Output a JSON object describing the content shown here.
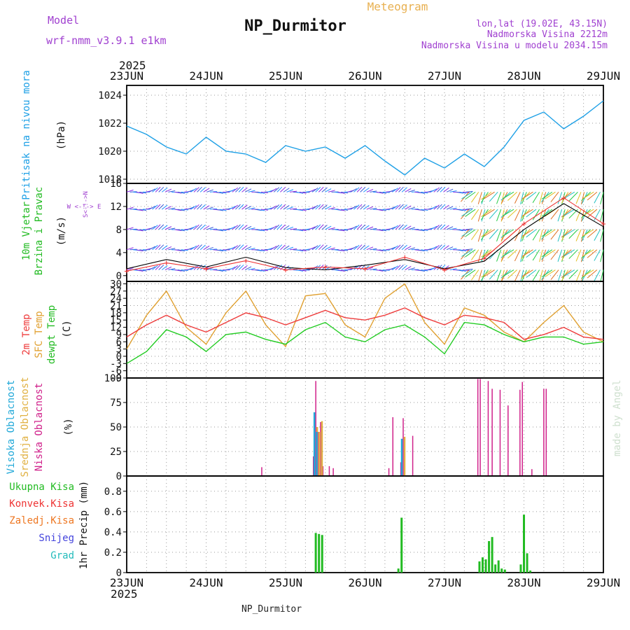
{
  "header": {
    "model_label": "Model",
    "model_name": "wrf-nmm_v3.9.1 e1km",
    "title": "NP_Durmitor",
    "meteogram": "Meteogram",
    "lonlat": "lon,lat (19.02E, 43.15N)",
    "altitude": "Nadmorska Visina 2212m",
    "model_altitude": "Nadmorska Visina u modelu 2034.15m",
    "watermark": "made by Angel",
    "footer": "NP_Durmitor"
  },
  "time_axis": {
    "year": "2025",
    "labels": [
      "23JUN",
      "24JUN",
      "25JUN",
      "26JUN",
      "27JUN",
      "28JUN",
      "29JUN"
    ]
  },
  "colors": {
    "pressure": "#1ea0e6",
    "temp2m": "#ee3b3b",
    "sfc": "#e0a030",
    "dewpt": "#22cc22",
    "cloud_high": "#20a8d8",
    "cloud_mid": "#e0b040",
    "cloud_low": "#d0208a",
    "precip_total": "#22bb22",
    "precip_conv": "#ee3333",
    "wind_speed": "#000000",
    "wind_gust": "#ee3333"
  },
  "chart_data": [
    {
      "type": "line",
      "id": "pressure",
      "ylabel_left": "Pritisak na nivou mora",
      "ylabel_unit": "(hPa)",
      "y_ticks": [
        "1018",
        "1020",
        "1022",
        "1024"
      ],
      "ylim": [
        1017.7,
        1024.7
      ],
      "x_unit": "days from 23JUN 00UTC",
      "xlim": [
        0,
        6
      ],
      "x": [
        0,
        0.25,
        0.5,
        0.75,
        1,
        1.25,
        1.5,
        1.75,
        2,
        2.25,
        2.5,
        2.75,
        3,
        3.25,
        3.5,
        3.75,
        4,
        4.25,
        4.5,
        4.75,
        5,
        5.25,
        5.5,
        5.75,
        6
      ],
      "values": [
        1021.8,
        1021.2,
        1020.3,
        1019.8,
        1021.0,
        1020.0,
        1019.8,
        1019.2,
        1020.4,
        1020.0,
        1020.3,
        1019.5,
        1020.4,
        1019.3,
        1018.3,
        1019.5,
        1018.8,
        1019.8,
        1018.9,
        1020.3,
        1022.2,
        1022.8,
        1021.6,
        1022.5,
        1023.6
      ]
    },
    {
      "type": "line",
      "id": "wind",
      "ylabel_left_1": "10m Vjetar",
      "ylabel_left_2": "Brzina i Pravac",
      "ylabel_unit": "(m/s)",
      "compass": "W <-!-> E",
      "compass_v": "S<-!->N",
      "y_ticks": [
        "0",
        "4",
        "8",
        "12",
        "16"
      ],
      "ylim": [
        -1,
        16
      ],
      "xlim": [
        0,
        6
      ],
      "x": [
        0,
        0.5,
        1,
        1.5,
        2,
        2.5,
        3,
        3.5,
        4,
        4.5,
        5,
        5.5,
        6
      ],
      "series": [
        {
          "values": [
            1.2,
            2.8,
            1.5,
            3.2,
            1.4,
            1.0,
            1.8,
            2.8,
            1.2,
            2.5,
            8.0,
            12.5,
            8.5
          ]
        },
        {
          "values": [
            0.8,
            2.2,
            1.2,
            2.6,
            1.0,
            1.5,
            1.2,
            3.2,
            1.0,
            3.0,
            9.0,
            13.5,
            9.0
          ]
        }
      ],
      "barb_rows": [
        1,
        4.5,
        8,
        11.5,
        14.5
      ]
    },
    {
      "type": "line",
      "id": "temperature",
      "ylabel_left_1": "2m Temp",
      "ylabel_left_2": "SFC Temp",
      "ylabel_left_3": "dewpt Temp",
      "ylabel_unit": "(C)",
      "y_ticks": [
        "-9",
        "-6",
        "-3",
        "0",
        "3",
        "6",
        "9",
        "12",
        "15",
        "18",
        "21",
        "24",
        "27",
        "30"
      ],
      "ylim": [
        -9,
        31
      ],
      "xlim": [
        0,
        6
      ],
      "x": [
        0,
        0.25,
        0.5,
        0.75,
        1,
        1.25,
        1.5,
        1.75,
        2,
        2.25,
        2.5,
        2.75,
        3,
        3.25,
        3.5,
        3.75,
        4,
        4.25,
        4.5,
        4.75,
        5,
        5.25,
        5.5,
        5.75,
        6
      ],
      "series": [
        {
          "name": "2m Temp",
          "values": [
            8,
            13,
            17,
            13,
            10,
            14,
            18,
            16,
            13,
            16,
            19,
            16,
            15,
            17,
            20,
            16,
            13,
            17,
            16,
            14,
            7,
            9,
            12,
            8,
            7
          ]
        },
        {
          "name": "SFC Temp",
          "values": [
            3,
            17,
            27,
            12,
            5,
            18,
            27,
            13,
            4,
            25,
            26,
            13,
            8,
            24,
            30,
            14,
            5,
            20,
            17,
            10,
            6,
            14,
            21,
            10,
            6
          ]
        },
        {
          "name": "dewpt Temp",
          "values": [
            -3,
            2,
            11,
            8,
            2,
            9,
            10,
            7,
            5,
            11,
            14,
            8,
            6,
            11,
            13,
            8,
            1,
            14,
            13,
            9,
            6,
            8,
            8,
            5,
            6
          ]
        }
      ]
    },
    {
      "type": "bar",
      "id": "clouds",
      "ylabel_left_1": "Visoka Oblacnost",
      "ylabel_left_2": "Srednja Oblacnost",
      "ylabel_left_3": "Niska Oblacnost",
      "ylabel_unit": "(%)",
      "y_ticks": [
        "0",
        "25",
        "50",
        "75",
        "100"
      ],
      "ylim": [
        0,
        100
      ],
      "xlim": [
        0,
        6
      ],
      "x": [
        1.7,
        2.35,
        2.38,
        2.41,
        2.44,
        2.47,
        2.55,
        2.6,
        3.3,
        3.35,
        3.45,
        3.48,
        3.6,
        4.42,
        4.45,
        4.55,
        4.6,
        4.7,
        4.8,
        4.95,
        4.98,
        5.1,
        5.25,
        5.28
      ],
      "series": [
        {
          "name": "Niska Oblacnost",
          "values": [
            9,
            20,
            97,
            45,
            55,
            10,
            10,
            8,
            8,
            60,
            14,
            59,
            41,
            99,
            99,
            97,
            89,
            88,
            72,
            88,
            96,
            7,
            89,
            89
          ]
        },
        {
          "name": "Srednja Oblacnost",
          "values": [
            0,
            0,
            50,
            45,
            56,
            0,
            0,
            0,
            0,
            0,
            0,
            40,
            0,
            0,
            0,
            0,
            0,
            0,
            0,
            0,
            0,
            0,
            0,
            0
          ]
        },
        {
          "name": "Visoka Oblacnost",
          "values": [
            0,
            0,
            65,
            45,
            0,
            0,
            0,
            0,
            0,
            0,
            0,
            38,
            0,
            0,
            0,
            0,
            0,
            0,
            0,
            0,
            0,
            0,
            0,
            0
          ]
        }
      ]
    },
    {
      "type": "bar",
      "id": "precip",
      "legend": [
        "Ukupna Kisa",
        "Konvek.Kisa",
        "Zaledj.Kisa",
        "Snijeg",
        "Grad"
      ],
      "legend_colors": [
        "#22bb22",
        "#ee3333",
        "#ee7722",
        "#4444dd",
        "#22bbbb"
      ],
      "ylabel_unit": "1hr Precip (mm)",
      "y_ticks": [
        "0",
        "0.2",
        "0.4",
        "0.6",
        "0.8"
      ],
      "ylim": [
        0,
        0.95
      ],
      "xlim": [
        0,
        6
      ],
      "x": [
        2.38,
        2.42,
        2.46,
        3.42,
        3.46,
        4.44,
        4.48,
        4.52,
        4.56,
        4.6,
        4.64,
        4.68,
        4.72,
        4.76,
        4.96,
        5.0,
        5.04,
        5.08
      ],
      "values": [
        0.39,
        0.38,
        0.37,
        0.04,
        0.54,
        0.11,
        0.15,
        0.13,
        0.31,
        0.35,
        0.08,
        0.12,
        0.04,
        0.03,
        0.08,
        0.57,
        0.19,
        0.02
      ]
    }
  ]
}
